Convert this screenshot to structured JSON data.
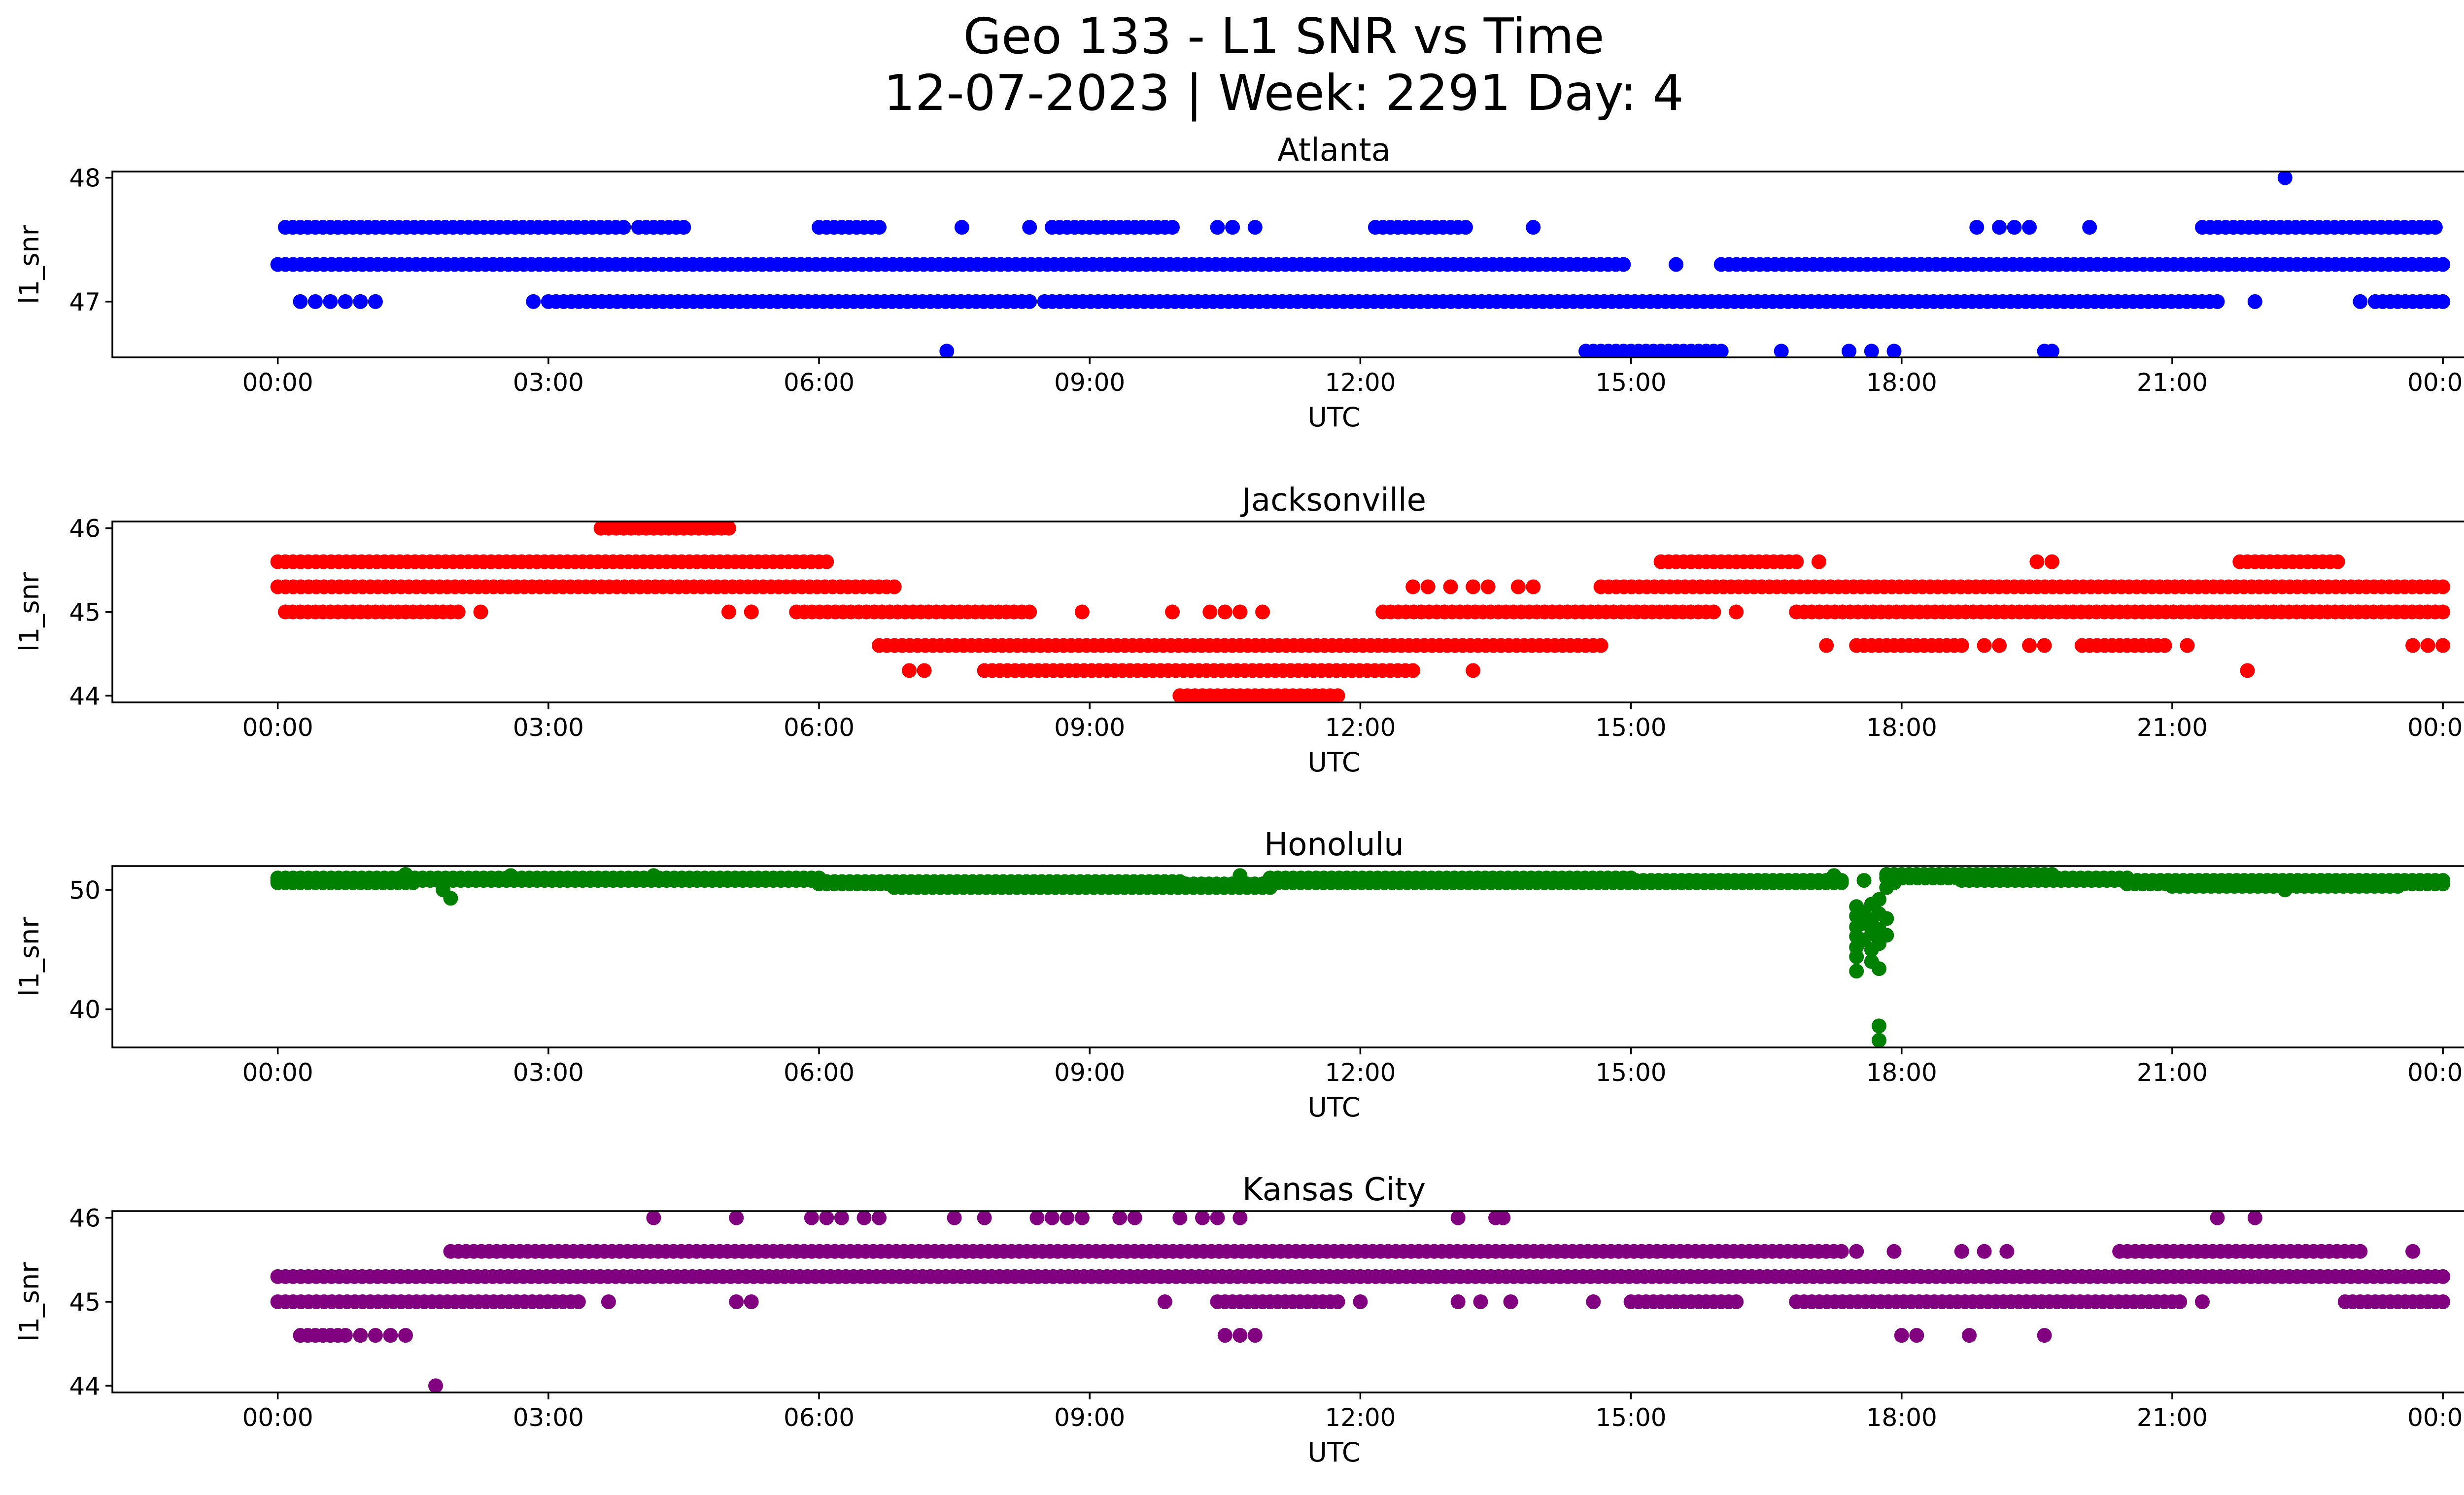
{
  "figure": {
    "title_line1": "Geo 133 - L1 SNR vs Time",
    "title_line2": "12-07-2023 | Week: 2291 Day: 4"
  },
  "chart_data": [
    {
      "type": "scatter",
      "title": "Atlanta",
      "xlabel": "UTC",
      "ylabel": "l1_snr",
      "color": "#0000ff",
      "xlim": [
        "-01:50",
        "25:15"
      ],
      "ylim": [
        46.55,
        48.05
      ],
      "xticks": [
        "00:00",
        "03:00",
        "06:00",
        "09:00",
        "12:00",
        "15:00",
        "18:00",
        "21:00",
        "00:00"
      ],
      "yticks": [
        47,
        48
      ],
      "grid": false,
      "segments": [
        {
          "y": 47.3,
          "from": "00:00",
          "to": "14:55"
        },
        {
          "y": 47.3,
          "from": "16:00",
          "to": "24:00"
        },
        {
          "y": 47.6,
          "from": "00:05",
          "to": "01:00"
        },
        {
          "y": 47.6,
          "from": "01:05",
          "to": "03:50"
        },
        {
          "y": 47.6,
          "from": "04:00",
          "to": "04:30"
        },
        {
          "y": 47.6,
          "from": "06:00",
          "to": "06:40"
        },
        {
          "y": 47.6,
          "from": "08:35",
          "to": "09:55"
        },
        {
          "y": 47.6,
          "from": "12:10",
          "to": "13:10"
        },
        {
          "y": 47.6,
          "from": "21:20",
          "to": "23:50"
        },
        {
          "y": 47.0,
          "from": "03:00",
          "to": "08:20"
        },
        {
          "y": 47.0,
          "from": "08:30",
          "to": "21:30"
        },
        {
          "y": 47.0,
          "from": "23:15",
          "to": "24:00"
        },
        {
          "y": 46.6,
          "from": "14:30",
          "to": "16:00"
        }
      ],
      "points": [
        {
          "x": "00:15",
          "y": 47.0
        },
        {
          "x": "00:25",
          "y": 47.0
        },
        {
          "x": "00:35",
          "y": 47.0
        },
        {
          "x": "00:45",
          "y": 47.0
        },
        {
          "x": "00:55",
          "y": 47.0
        },
        {
          "x": "01:05",
          "y": 47.0
        },
        {
          "x": "02:50",
          "y": 47.0
        },
        {
          "x": "07:25",
          "y": 46.6
        },
        {
          "x": "07:35",
          "y": 47.6
        },
        {
          "x": "08:20",
          "y": 47.6
        },
        {
          "x": "10:25",
          "y": 47.6
        },
        {
          "x": "10:35",
          "y": 47.6
        },
        {
          "x": "10:50",
          "y": 47.6
        },
        {
          "x": "13:55",
          "y": 47.6
        },
        {
          "x": "15:30",
          "y": 47.3
        },
        {
          "x": "16:40",
          "y": 46.6
        },
        {
          "x": "17:25",
          "y": 46.6
        },
        {
          "x": "17:40",
          "y": 46.6
        },
        {
          "x": "17:55",
          "y": 46.6
        },
        {
          "x": "18:50",
          "y": 47.6
        },
        {
          "x": "19:05",
          "y": 47.6
        },
        {
          "x": "19:15",
          "y": 47.6
        },
        {
          "x": "19:25",
          "y": 47.6
        },
        {
          "x": "19:35",
          "y": 46.6
        },
        {
          "x": "19:40",
          "y": 46.6
        },
        {
          "x": "20:05",
          "y": 47.6
        },
        {
          "x": "21:55",
          "y": 47.0
        },
        {
          "x": "22:15",
          "y": 48.0
        },
        {
          "x": "23:05",
          "y": 47.0
        },
        {
          "x": "23:55",
          "y": 47.6
        }
      ]
    },
    {
      "type": "scatter",
      "title": "Jacksonville",
      "xlabel": "UTC",
      "ylabel": "l1_snr",
      "color": "#ff0000",
      "xlim": [
        "-01:50",
        "25:15"
      ],
      "ylim": [
        43.92,
        46.08
      ],
      "xticks": [
        "00:00",
        "03:00",
        "06:00",
        "09:00",
        "12:00",
        "15:00",
        "18:00",
        "21:00",
        "00:00"
      ],
      "yticks": [
        44,
        45,
        46
      ],
      "grid": false,
      "segments": [
        {
          "y": 45.6,
          "from": "00:00",
          "to": "06:05"
        },
        {
          "y": 45.6,
          "from": "15:20",
          "to": "16:50"
        },
        {
          "y": 45.6,
          "from": "21:45",
          "to": "22:50"
        },
        {
          "y": 45.3,
          "from": "00:00",
          "to": "06:50"
        },
        {
          "y": 45.3,
          "from": "14:40",
          "to": "24:00"
        },
        {
          "y": 45.0,
          "from": "00:05",
          "to": "02:00"
        },
        {
          "y": 45.0,
          "from": "05:45",
          "to": "08:20"
        },
        {
          "y": 45.0,
          "from": "12:15",
          "to": "15:55"
        },
        {
          "y": 45.0,
          "from": "16:50",
          "to": "24:00"
        },
        {
          "y": 44.6,
          "from": "06:40",
          "to": "14:40"
        },
        {
          "y": 44.6,
          "from": "17:30",
          "to": "18:40"
        },
        {
          "y": 44.6,
          "from": "20:00",
          "to": "20:55"
        },
        {
          "y": 44.3,
          "from": "07:50",
          "to": "12:30"
        },
        {
          "y": 46.0,
          "from": "03:35",
          "to": "05:00"
        },
        {
          "y": 44.0,
          "from": "10:00",
          "to": "11:45"
        }
      ],
      "points": [
        {
          "x": "02:15",
          "y": 45.0
        },
        {
          "x": "05:00",
          "y": 45.0
        },
        {
          "x": "05:15",
          "y": 45.0
        },
        {
          "x": "07:00",
          "y": 44.3
        },
        {
          "x": "07:10",
          "y": 44.3
        },
        {
          "x": "08:55",
          "y": 45.0
        },
        {
          "x": "09:55",
          "y": 45.0
        },
        {
          "x": "10:20",
          "y": 45.0
        },
        {
          "x": "10:30",
          "y": 45.0
        },
        {
          "x": "10:40",
          "y": 45.0
        },
        {
          "x": "10:55",
          "y": 45.0
        },
        {
          "x": "12:35",
          "y": 45.3
        },
        {
          "x": "12:45",
          "y": 45.3
        },
        {
          "x": "12:35",
          "y": 44.3
        },
        {
          "x": "13:00",
          "y": 45.3
        },
        {
          "x": "13:15",
          "y": 45.3
        },
        {
          "x": "13:25",
          "y": 45.3
        },
        {
          "x": "13:45",
          "y": 45.3
        },
        {
          "x": "13:55",
          "y": 45.3
        },
        {
          "x": "13:15",
          "y": 44.3
        },
        {
          "x": "16:10",
          "y": 45.0
        },
        {
          "x": "16:50",
          "y": 45.6
        },
        {
          "x": "17:05",
          "y": 45.6
        },
        {
          "x": "17:10",
          "y": 44.6
        },
        {
          "x": "18:55",
          "y": 44.6
        },
        {
          "x": "19:05",
          "y": 44.6
        },
        {
          "x": "19:25",
          "y": 44.6
        },
        {
          "x": "19:35",
          "y": 44.6
        },
        {
          "x": "19:30",
          "y": 45.6
        },
        {
          "x": "19:40",
          "y": 45.6
        },
        {
          "x": "21:10",
          "y": 44.6
        },
        {
          "x": "21:50",
          "y": 44.3
        },
        {
          "x": "23:40",
          "y": 44.6
        },
        {
          "x": "23:50",
          "y": 44.6
        },
        {
          "x": "24:00",
          "y": 44.6
        }
      ]
    },
    {
      "type": "scatter",
      "title": "Honolulu",
      "xlabel": "UTC",
      "ylabel": "l1_snr",
      "color": "#008000",
      "xlim": [
        "-01:50",
        "25:15"
      ],
      "ylim": [
        36.8,
        52.0
      ],
      "xticks": [
        "00:00",
        "03:00",
        "06:00",
        "09:00",
        "12:00",
        "15:00",
        "18:00",
        "21:00",
        "00:00"
      ],
      "yticks": [
        40,
        50
      ],
      "grid": false,
      "segments": [
        {
          "y": 50.8,
          "from": "00:00",
          "to": "06:00"
        },
        {
          "y": 51.0,
          "from": "00:00",
          "to": "06:00"
        },
        {
          "y": 50.6,
          "from": "00:00",
          "to": "01:30"
        },
        {
          "y": 50.5,
          "from": "06:00",
          "to": "11:00"
        },
        {
          "y": 50.2,
          "from": "06:50",
          "to": "11:00"
        },
        {
          "y": 50.7,
          "from": "06:00",
          "to": "10:00"
        },
        {
          "y": 50.8,
          "from": "11:00",
          "to": "17:20"
        },
        {
          "y": 50.6,
          "from": "11:00",
          "to": "17:20"
        },
        {
          "y": 51.0,
          "from": "11:00",
          "to": "15:00"
        },
        {
          "y": 51.3,
          "from": "17:50",
          "to": "19:40"
        },
        {
          "y": 51.0,
          "from": "17:50",
          "to": "20:30"
        },
        {
          "y": 50.8,
          "from": "18:40",
          "to": "24:00"
        },
        {
          "y": 50.5,
          "from": "20:30",
          "to": "24:00"
        },
        {
          "y": 50.3,
          "from": "21:00",
          "to": "23:30"
        }
      ],
      "points": [
        {
          "x": "01:55",
          "y": 49.3
        },
        {
          "x": "01:50",
          "y": 50.0
        },
        {
          "x": "01:25",
          "y": 51.3
        },
        {
          "x": "02:35",
          "y": 51.2
        },
        {
          "x": "04:10",
          "y": 51.2
        },
        {
          "x": "10:40",
          "y": 51.2
        },
        {
          "x": "17:15",
          "y": 51.2
        },
        {
          "x": "17:30",
          "y": 48.6
        },
        {
          "x": "17:30",
          "y": 47.8
        },
        {
          "x": "17:30",
          "y": 46.9
        },
        {
          "x": "17:30",
          "y": 46.1
        },
        {
          "x": "17:30",
          "y": 45.2
        },
        {
          "x": "17:30",
          "y": 44.4
        },
        {
          "x": "17:30",
          "y": 43.2
        },
        {
          "x": "17:35",
          "y": 48.1
        },
        {
          "x": "17:35",
          "y": 47.2
        },
        {
          "x": "17:35",
          "y": 45.8
        },
        {
          "x": "17:40",
          "y": 48.8
        },
        {
          "x": "17:40",
          "y": 47.5
        },
        {
          "x": "17:40",
          "y": 46.3
        },
        {
          "x": "17:40",
          "y": 45.0
        },
        {
          "x": "17:40",
          "y": 44.0
        },
        {
          "x": "17:45",
          "y": 49.2
        },
        {
          "x": "17:45",
          "y": 48.0
        },
        {
          "x": "17:45",
          "y": 46.7
        },
        {
          "x": "17:45",
          "y": 45.5
        },
        {
          "x": "17:45",
          "y": 43.4
        },
        {
          "x": "17:45",
          "y": 38.6
        },
        {
          "x": "17:45",
          "y": 37.4
        },
        {
          "x": "17:50",
          "y": 47.6
        },
        {
          "x": "17:50",
          "y": 46.2
        },
        {
          "x": "17:50",
          "y": 50.2
        },
        {
          "x": "17:35",
          "y": 50.8
        },
        {
          "x": "17:55",
          "y": 50.6
        },
        {
          "x": "22:15",
          "y": 50.0
        }
      ]
    },
    {
      "type": "scatter",
      "title": "Kansas City",
      "xlabel": "UTC",
      "ylabel": "l1_snr",
      "color": "#800080",
      "xlim": [
        "-01:50",
        "25:15"
      ],
      "ylim": [
        43.92,
        46.08
      ],
      "xticks": [
        "00:00",
        "03:00",
        "06:00",
        "09:00",
        "12:00",
        "15:00",
        "18:00",
        "21:00",
        "00:00"
      ],
      "yticks": [
        44,
        45,
        46
      ],
      "grid": false,
      "segments": [
        {
          "y": 45.3,
          "from": "00:00",
          "to": "24:00"
        },
        {
          "y": 45.6,
          "from": "01:55",
          "to": "17:20"
        },
        {
          "y": 45.6,
          "from": "20:25",
          "to": "23:05"
        },
        {
          "y": 45.0,
          "from": "00:00",
          "to": "03:20"
        },
        {
          "y": 45.0,
          "from": "10:25",
          "to": "11:45"
        },
        {
          "y": 45.0,
          "from": "15:00",
          "to": "16:10"
        },
        {
          "y": 45.0,
          "from": "16:50",
          "to": "21:05"
        },
        {
          "y": 45.0,
          "from": "22:55",
          "to": "24:00"
        },
        {
          "y": 44.6,
          "from": "00:15",
          "to": "00:45"
        }
      ],
      "points": [
        {
          "x": "00:55",
          "y": 44.6
        },
        {
          "x": "01:05",
          "y": 44.6
        },
        {
          "x": "01:15",
          "y": 44.6
        },
        {
          "x": "01:25",
          "y": 44.6
        },
        {
          "x": "01:45",
          "y": 44.0
        },
        {
          "x": "03:40",
          "y": 45.0
        },
        {
          "x": "04:10",
          "y": 46.0
        },
        {
          "x": "05:05",
          "y": 46.0
        },
        {
          "x": "05:05",
          "y": 45.0
        },
        {
          "x": "05:15",
          "y": 45.0
        },
        {
          "x": "05:55",
          "y": 46.0
        },
        {
          "x": "06:05",
          "y": 46.0
        },
        {
          "x": "06:15",
          "y": 46.0
        },
        {
          "x": "06:30",
          "y": 46.0
        },
        {
          "x": "06:40",
          "y": 46.0
        },
        {
          "x": "07:30",
          "y": 46.0
        },
        {
          "x": "07:50",
          "y": 46.0
        },
        {
          "x": "08:25",
          "y": 46.0
        },
        {
          "x": "08:35",
          "y": 46.0
        },
        {
          "x": "08:45",
          "y": 46.0
        },
        {
          "x": "08:55",
          "y": 46.0
        },
        {
          "x": "09:20",
          "y": 46.0
        },
        {
          "x": "09:30",
          "y": 46.0
        },
        {
          "x": "09:50",
          "y": 45.0
        },
        {
          "x": "10:00",
          "y": 46.0
        },
        {
          "x": "10:15",
          "y": 46.0
        },
        {
          "x": "10:25",
          "y": 46.0
        },
        {
          "x": "10:40",
          "y": 46.0
        },
        {
          "x": "10:30",
          "y": 44.6
        },
        {
          "x": "10:40",
          "y": 44.6
        },
        {
          "x": "10:50",
          "y": 44.6
        },
        {
          "x": "12:00",
          "y": 45.0
        },
        {
          "x": "13:05",
          "y": 46.0
        },
        {
          "x": "13:05",
          "y": 45.0
        },
        {
          "x": "13:20",
          "y": 45.0
        },
        {
          "x": "13:30",
          "y": 46.0
        },
        {
          "x": "13:35",
          "y": 46.0
        },
        {
          "x": "13:40",
          "y": 45.0
        },
        {
          "x": "14:35",
          "y": 45.0
        },
        {
          "x": "17:30",
          "y": 45.6
        },
        {
          "x": "17:55",
          "y": 45.6
        },
        {
          "x": "18:00",
          "y": 44.6
        },
        {
          "x": "18:10",
          "y": 44.6
        },
        {
          "x": "18:40",
          "y": 45.6
        },
        {
          "x": "18:45",
          "y": 44.6
        },
        {
          "x": "18:55",
          "y": 45.6
        },
        {
          "x": "19:10",
          "y": 45.6
        },
        {
          "x": "19:35",
          "y": 44.6
        },
        {
          "x": "21:20",
          "y": 45.0
        },
        {
          "x": "21:30",
          "y": 46.0
        },
        {
          "x": "21:55",
          "y": 46.0
        },
        {
          "x": "23:40",
          "y": 45.6
        }
      ]
    }
  ]
}
